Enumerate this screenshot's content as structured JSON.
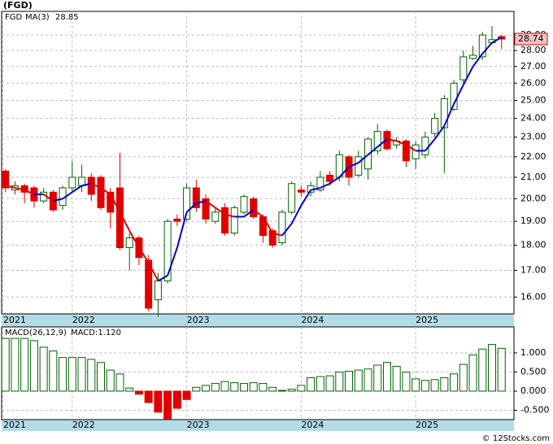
{
  "chart_data": [
    {
      "type": "candlestick",
      "title": "(FGD)",
      "log": true,
      "grid": true,
      "xlim": [
        -0.4,
        53.3
      ],
      "xticks": [
        {
          "value": -0.3,
          "label": "2021"
        },
        {
          "value": 7,
          "label": "2022"
        },
        {
          "value": 19,
          "label": "2023"
        },
        {
          "value": 31,
          "label": "2024"
        },
        {
          "value": 43,
          "label": "2025"
        }
      ],
      "ylim": [
        15.4,
        30.6
      ],
      "yticks": [
        {
          "value": 16,
          "label": "16.00"
        },
        {
          "value": 17,
          "label": "17.00"
        },
        {
          "value": 18,
          "label": "18.00"
        },
        {
          "value": 19,
          "label": "19.00"
        },
        {
          "value": 20,
          "label": "20.00"
        },
        {
          "value": 21,
          "label": "21.00"
        },
        {
          "value": 22,
          "label": "22.00"
        },
        {
          "value": 23,
          "label": "23.00"
        },
        {
          "value": 24,
          "label": "24.00"
        },
        {
          "value": 25,
          "label": "25.00"
        },
        {
          "value": 26,
          "label": "26.00"
        },
        {
          "value": 27,
          "label": "27.00"
        },
        {
          "value": 28,
          "label": "28.00"
        },
        {
          "value": 29,
          "label": "29.00"
        }
      ],
      "series": [
        {
          "name": "FGD",
          "color": "#006400",
          "down_color": "#e00000",
          "open": [
            21.3,
            20.4,
            20.6,
            20.5,
            19.9,
            20.3,
            19.7,
            20.5,
            20.6,
            21.0,
            21.0,
            20.3,
            20.5,
            17.9,
            18.3,
            17.4,
            15.9,
            16.6,
            19.1,
            19.1,
            20.5,
            20.0,
            19.0,
            19.6,
            18.5,
            19.4,
            20.0,
            19.2,
            18.6,
            18.1,
            19.4,
            20.4,
            20.3,
            20.4,
            21.1,
            21.0,
            22.0,
            21.1,
            21.4,
            22.3,
            23.3,
            22.6,
            22.8,
            21.9,
            22.1,
            23.2,
            23.5,
            24.5,
            26.2,
            27.5,
            27.6,
            28.5,
            28.9
          ],
          "high": [
            21.4,
            20.8,
            20.7,
            20.6,
            20.5,
            20.4,
            20.6,
            21.8,
            21.6,
            21.2,
            21.1,
            20.5,
            22.2,
            18.5,
            18.4,
            17.6,
            16.9,
            19.1,
            19.3,
            20.7,
            20.9,
            20.2,
            19.6,
            19.8,
            19.7,
            20.2,
            20.1,
            19.3,
            18.7,
            19.5,
            20.8,
            20.6,
            20.8,
            21.3,
            21.3,
            22.3,
            22.1,
            22.3,
            23.0,
            23.7,
            23.4,
            23.0,
            22.9,
            22.8,
            23.3,
            24.3,
            25.3,
            26.2,
            28.0,
            28.3,
            29.2,
            29.6,
            29.0
          ],
          "low": [
            20.3,
            20.2,
            19.8,
            19.6,
            19.8,
            19.4,
            19.5,
            20.3,
            20.3,
            19.9,
            19.5,
            18.7,
            17.8,
            17.0,
            17.2,
            15.5,
            15.3,
            16.5,
            18.8,
            19.0,
            19.4,
            18.9,
            18.9,
            18.4,
            18.4,
            19.3,
            19.1,
            18.1,
            17.9,
            18.0,
            19.3,
            20.1,
            20.1,
            20.3,
            20.6,
            20.8,
            20.6,
            21.0,
            20.9,
            22.1,
            22.3,
            22.4,
            21.5,
            21.4,
            21.9,
            23.0,
            21.2,
            24.4,
            26.0,
            27.4,
            27.4,
            28.4,
            28.1
          ],
          "close": [
            20.5,
            20.6,
            20.3,
            19.9,
            20.3,
            19.5,
            20.5,
            21.0,
            21.0,
            20.2,
            19.6,
            19.4,
            17.9,
            18.3,
            17.5,
            15.6,
            16.6,
            19.0,
            19.0,
            20.5,
            19.6,
            19.1,
            19.4,
            18.5,
            19.6,
            20.1,
            19.2,
            18.4,
            18.0,
            19.4,
            20.7,
            20.3,
            20.6,
            21.0,
            20.8,
            22.1,
            21.0,
            22.0,
            22.9,
            23.3,
            22.4,
            22.8,
            21.8,
            22.6,
            23.0,
            24.0,
            25.1,
            26.0,
            27.6,
            27.7,
            29.0,
            28.7,
            28.74
          ]
        },
        {
          "name": "MA(3)",
          "color": "#0000cc",
          "down_color": "#e00000",
          "values": [
            20.6,
            20.5,
            20.4,
            20.2,
            20.2,
            19.9,
            20.0,
            20.3,
            20.6,
            20.7,
            20.5,
            20.2,
            19.4,
            18.6,
            17.9,
            17.3,
            16.6,
            16.8,
            17.9,
            19.4,
            19.8,
            19.9,
            19.6,
            19.3,
            19.2,
            19.2,
            19.5,
            19.2,
            18.5,
            18.4,
            18.9,
            19.7,
            20.4,
            20.5,
            20.7,
            21.0,
            21.5,
            21.7,
            22.1,
            22.5,
            22.9,
            22.8,
            22.6,
            22.3,
            22.3,
            22.9,
            23.6,
            24.8,
            25.9,
            27.0,
            27.8,
            28.5,
            28.85
          ]
        }
      ]
    },
    {
      "type": "bar",
      "title": "MACD(26,12,9)",
      "legend_value": "MACD:1.120",
      "color": "#006400",
      "negative_color": "#e00000",
      "grid": true,
      "xlim": [
        -0.4,
        53.3
      ],
      "xticks": [
        {
          "value": -0.3,
          "label": "2021"
        },
        {
          "value": 7,
          "label": "2022"
        },
        {
          "value": 19,
          "label": "2023"
        },
        {
          "value": 31,
          "label": "2024"
        },
        {
          "value": 43,
          "label": "2025"
        }
      ],
      "ylim": [
        -0.745,
        1.68
      ],
      "yticks": [
        {
          "value": -0.5,
          "label": "-0.500"
        },
        {
          "value": 0,
          "label": "0.000"
        },
        {
          "value": 0.5,
          "label": "0.500"
        },
        {
          "value": 1,
          "label": "1.000"
        }
      ],
      "values": [
        1.38,
        1.38,
        1.38,
        1.32,
        1.15,
        1.05,
        0.88,
        0.88,
        0.88,
        0.83,
        0.75,
        0.55,
        0.45,
        0.08,
        -0.08,
        -0.3,
        -0.55,
        -0.72,
        -0.45,
        -0.22,
        0.1,
        0.15,
        0.2,
        0.25,
        0.22,
        0.2,
        0.22,
        0.2,
        0.1,
        0.02,
        0.05,
        0.15,
        0.35,
        0.38,
        0.4,
        0.5,
        0.52,
        0.55,
        0.58,
        0.68,
        0.75,
        0.65,
        0.5,
        0.32,
        0.28,
        0.3,
        0.35,
        0.45,
        0.7,
        0.95,
        1.1,
        1.22,
        1.12
      ]
    }
  ],
  "watermark": "© 12Stocks.com"
}
